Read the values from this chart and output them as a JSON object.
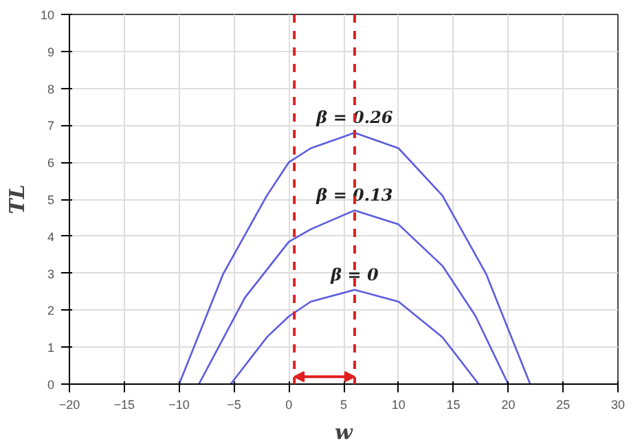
{
  "chart_data": {
    "type": "line",
    "xlabel": "w",
    "ylabel": "TL",
    "series": [
      {
        "name": "β = 0.26",
        "color": "#5b5be0",
        "x": [
          -10,
          -6,
          -2,
          0,
          2,
          6,
          10,
          14,
          18,
          22
        ],
        "values": [
          0,
          2.97,
          5.1,
          6.0,
          6.38,
          6.8,
          6.38,
          5.1,
          2.97,
          0
        ]
      },
      {
        "name": "β = 0.13",
        "color": "#5b5be0",
        "x": [
          -8.2,
          -4,
          0,
          2,
          6,
          10,
          14,
          17,
          20
        ],
        "values": [
          0,
          2.34,
          3.85,
          4.19,
          4.7,
          4.32,
          3.2,
          1.85,
          0
        ]
      },
      {
        "name": "β = 0",
        "color": "#5b5be0",
        "x": [
          -5.3,
          -2,
          0,
          2,
          6,
          10,
          14,
          17.3
        ],
        "values": [
          0,
          1.27,
          1.83,
          2.23,
          2.55,
          2.23,
          1.27,
          0
        ]
      }
    ],
    "legend": false,
    "ref_lines": [
      {
        "axis": "x",
        "value": 0.5,
        "color": "#e02020",
        "line_style": "dashed"
      },
      {
        "axis": "x",
        "value": 6,
        "color": "#e02020",
        "line_style": "dashed"
      }
    ],
    "xlim": [
      -20,
      30
    ],
    "ylim": [
      0,
      10
    ],
    "xticks": [
      -20,
      -15,
      -10,
      -5,
      0,
      5,
      10,
      15,
      20,
      25,
      30
    ],
    "yticks": [
      0,
      1,
      2,
      3,
      4,
      5,
      6,
      7,
      8,
      9,
      10
    ],
    "grid": true,
    "marker": "none",
    "line_style": "solid"
  }
}
